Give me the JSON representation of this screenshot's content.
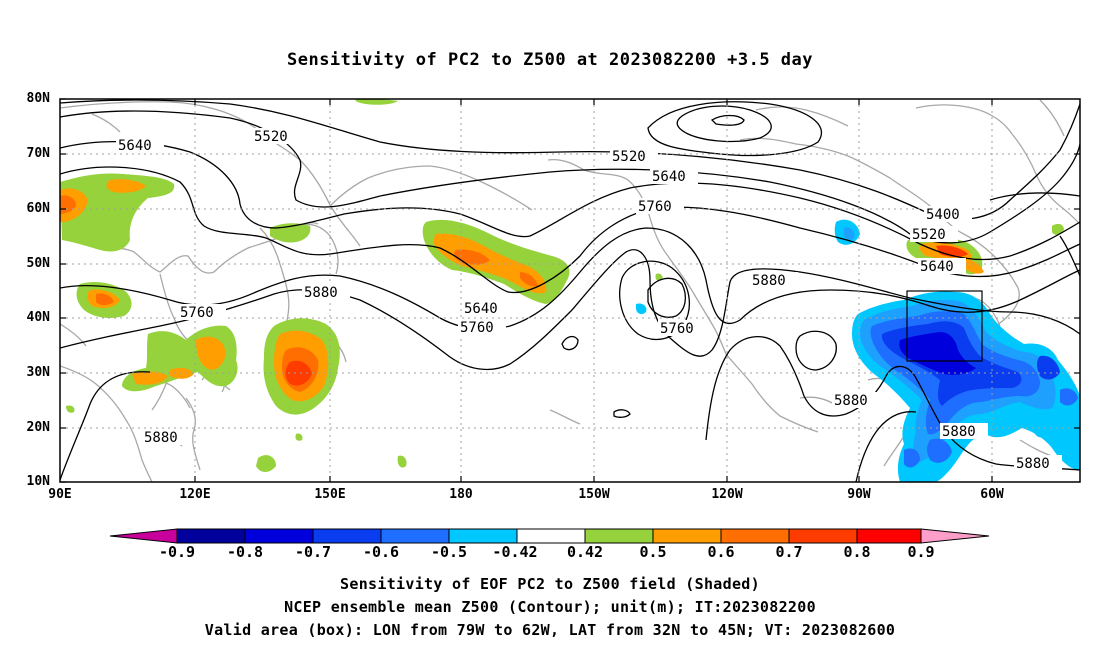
{
  "title": "Sensitivity of PC2 to Z500 at 2023082200 +3.5 day",
  "axes": {
    "lat_labels": [
      "80N",
      "70N",
      "60N",
      "50N",
      "40N",
      "30N",
      "20N",
      "10N"
    ],
    "lon_labels": [
      "90E",
      "120E",
      "150E",
      "180",
      "150W",
      "120W",
      "90W",
      "60W"
    ]
  },
  "contour_labels": [
    "5520",
    "5640",
    "5520",
    "5640",
    "5760",
    "5400",
    "5520",
    "5640",
    "5880",
    "5760",
    "5880",
    "5640",
    "5760",
    "5760",
    "5880",
    "5880",
    "5880",
    "5880"
  ],
  "colorbar": {
    "labels": [
      "-0.9",
      "-0.8",
      "-0.7",
      "-0.6",
      "-0.5",
      "-0.42",
      "0.42",
      "0.5",
      "0.6",
      "0.7",
      "0.8",
      "0.9"
    ],
    "colors": [
      "#c8009c",
      "#00009c",
      "#0000dc",
      "#0a3cf0",
      "#1e6eff",
      "#1ea0ff",
      "#00c8ff",
      "#ffffff",
      "#96d23c",
      "#ff9e00",
      "#ff6e00",
      "#ff3c00",
      "#ff0000",
      "#ff9ec8"
    ]
  },
  "captions": {
    "line1": "Sensitivity of EOF PC2 to Z500 field (Shaded)",
    "line2": "NCEP ensemble mean Z500 (Contour); unit(m); IT:2023082200",
    "line3": "Valid area (box): LON from 79W to 62W, LAT from 32N to 45N; VT: 2023082600"
  },
  "valid_box": {
    "lon": "79W to 62W",
    "lat": "32N to 45N"
  }
}
